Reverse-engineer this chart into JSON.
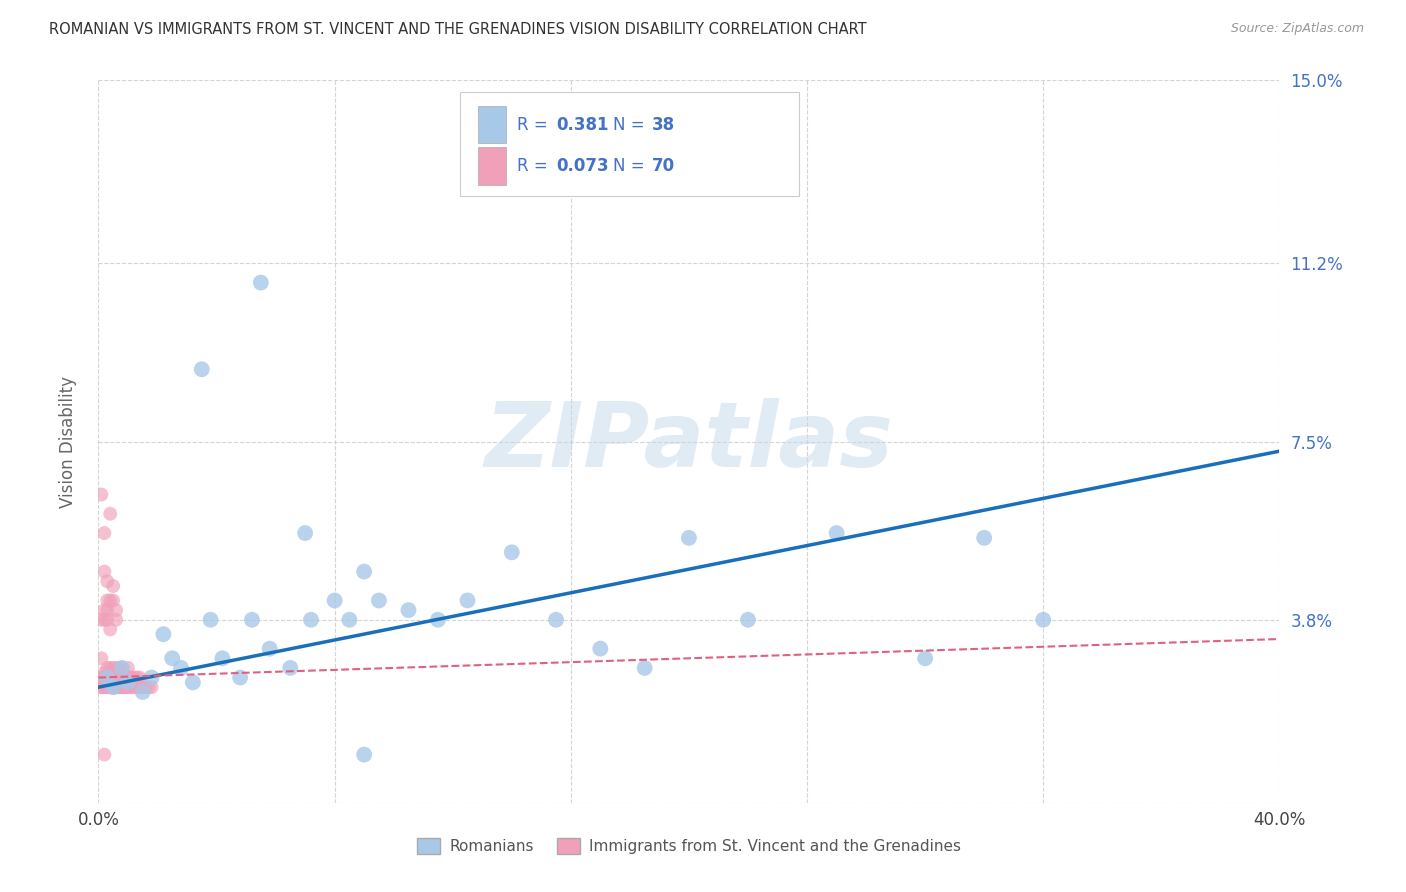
{
  "title": "ROMANIAN VS IMMIGRANTS FROM ST. VINCENT AND THE GRENADINES VISION DISABILITY CORRELATION CHART",
  "source": "Source: ZipAtlas.com",
  "ylabel": "Vision Disability",
  "xlim": [
    0.0,
    0.4
  ],
  "ylim": [
    0.0,
    0.15
  ],
  "xticks": [
    0.0,
    0.08,
    0.16,
    0.24,
    0.32,
    0.4
  ],
  "xticklabels": [
    "0.0%",
    "",
    "",
    "",
    "",
    "40.0%"
  ],
  "yticks": [
    0.0,
    0.038,
    0.075,
    0.112,
    0.15
  ],
  "yticklabels": [
    "",
    "3.8%",
    "7.5%",
    "11.2%",
    "15.0%"
  ],
  "blue_R": "0.381",
  "blue_N": "38",
  "pink_R": "0.073",
  "pink_N": "70",
  "blue_color": "#a8c8e8",
  "pink_color": "#f0a0b8",
  "line_blue_color": "#1a6fba",
  "line_pink_color": "#e06080",
  "legend_blue_label": "Romanians",
  "legend_pink_label": "Immigrants from St. Vincent and the Grenadines",
  "watermark_text": "ZIPatlas",
  "legend_text_color": "#4472c4",
  "blue_x": [
    0.003,
    0.005,
    0.008,
    0.01,
    0.015,
    0.018,
    0.022,
    0.025,
    0.028,
    0.032,
    0.038,
    0.042,
    0.048,
    0.052,
    0.058,
    0.065,
    0.072,
    0.08,
    0.085,
    0.09,
    0.095,
    0.105,
    0.115,
    0.125,
    0.14,
    0.155,
    0.17,
    0.185,
    0.2,
    0.22,
    0.25,
    0.28,
    0.3,
    0.32,
    0.035,
    0.055,
    0.07,
    0.09
  ],
  "blue_y": [
    0.026,
    0.024,
    0.028,
    0.025,
    0.023,
    0.026,
    0.035,
    0.03,
    0.028,
    0.025,
    0.038,
    0.03,
    0.026,
    0.038,
    0.032,
    0.028,
    0.038,
    0.042,
    0.038,
    0.048,
    0.042,
    0.04,
    0.038,
    0.042,
    0.052,
    0.038,
    0.032,
    0.028,
    0.055,
    0.038,
    0.056,
    0.03,
    0.055,
    0.038,
    0.09,
    0.108,
    0.056,
    0.01
  ],
  "pink_x": [
    0.001,
    0.001,
    0.002,
    0.002,
    0.002,
    0.003,
    0.003,
    0.003,
    0.003,
    0.004,
    0.004,
    0.004,
    0.005,
    0.005,
    0.005,
    0.005,
    0.005,
    0.006,
    0.006,
    0.006,
    0.006,
    0.007,
    0.007,
    0.007,
    0.007,
    0.007,
    0.008,
    0.008,
    0.008,
    0.008,
    0.009,
    0.009,
    0.009,
    0.01,
    0.01,
    0.01,
    0.01,
    0.011,
    0.011,
    0.011,
    0.012,
    0.012,
    0.013,
    0.013,
    0.014,
    0.014,
    0.015,
    0.016,
    0.017,
    0.018,
    0.002,
    0.003,
    0.004,
    0.005,
    0.006,
    0.001,
    0.003,
    0.002,
    0.004,
    0.003,
    0.002,
    0.001,
    0.004,
    0.005,
    0.006,
    0.002,
    0.003,
    0.001,
    0.002,
    0.001
  ],
  "pink_y": [
    0.026,
    0.024,
    0.027,
    0.024,
    0.026,
    0.024,
    0.026,
    0.028,
    0.024,
    0.024,
    0.026,
    0.028,
    0.024,
    0.026,
    0.028,
    0.024,
    0.026,
    0.024,
    0.026,
    0.028,
    0.024,
    0.024,
    0.026,
    0.028,
    0.024,
    0.026,
    0.024,
    0.026,
    0.028,
    0.024,
    0.024,
    0.026,
    0.024,
    0.024,
    0.026,
    0.028,
    0.024,
    0.026,
    0.024,
    0.026,
    0.024,
    0.026,
    0.024,
    0.026,
    0.024,
    0.026,
    0.024,
    0.024,
    0.024,
    0.024,
    0.038,
    0.04,
    0.042,
    0.042,
    0.04,
    0.038,
    0.038,
    0.056,
    0.06,
    0.046,
    0.048,
    0.064,
    0.036,
    0.045,
    0.038,
    0.04,
    0.042,
    0.03,
    0.01,
    0.024
  ]
}
